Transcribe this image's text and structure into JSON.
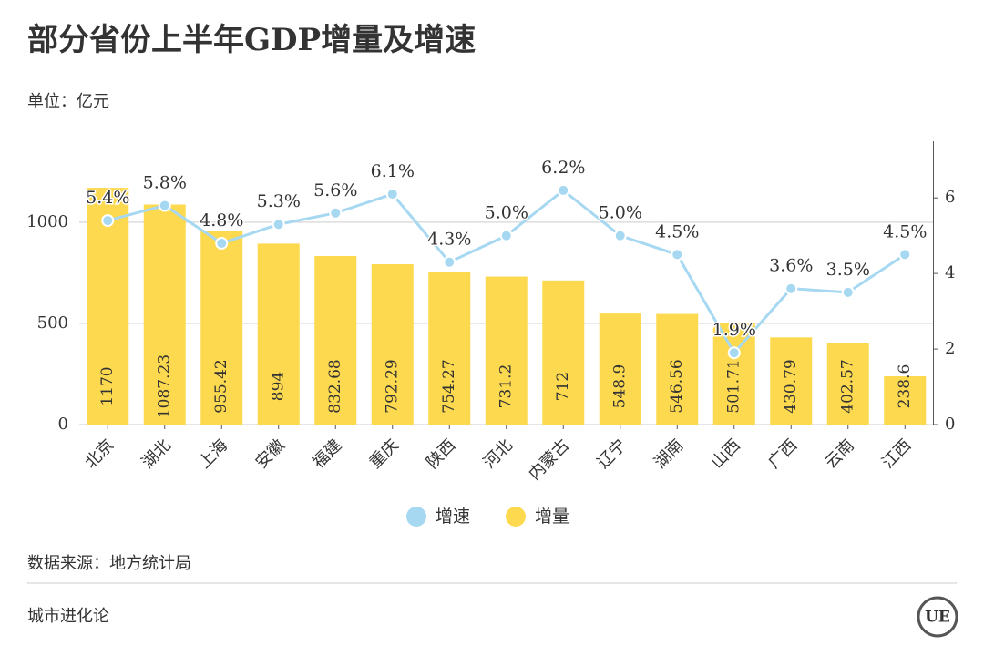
{
  "chart_data": {
    "type": "bar-line",
    "title": "部分省份上半年GDP增量及增速",
    "subtitle": "单位：亿元",
    "source": "数据来源：地方统计局",
    "footer": "城市进化论",
    "logo": "UE",
    "categories": [
      "北京",
      "湖北",
      "上海",
      "安徽",
      "福建",
      "重庆",
      "陕西",
      "河北",
      "内蒙古",
      "辽宁",
      "湖南",
      "山西",
      "广西",
      "云南",
      "江西"
    ],
    "series": [
      {
        "name": "增速",
        "type": "line",
        "axis": "y2",
        "color": "#a6d8f2",
        "values": [
          5.4,
          5.8,
          4.8,
          5.3,
          5.6,
          6.1,
          4.3,
          5.0,
          6.2,
          5.0,
          4.5,
          1.9,
          3.6,
          3.5,
          4.5
        ],
        "value_labels": [
          "5.4%",
          "5.8%",
          "4.8%",
          "5.3%",
          "5.6%",
          "6.1%",
          "4.3%",
          "5.0%",
          "6.2%",
          "5.0%",
          "4.5%",
          "1.9%",
          "3.6%",
          "3.5%",
          "4.5%"
        ]
      },
      {
        "name": "增量",
        "type": "bar",
        "color": "#fdd94f",
        "values": [
          1170,
          1087.23,
          955.42,
          894,
          832.68,
          792.29,
          754.27,
          731.2,
          712,
          548.9,
          546.56,
          501.71,
          430.79,
          402.57,
          238.6
        ]
      }
    ],
    "ylim": [
      0,
      1400
    ],
    "yticks": [
      0,
      500,
      1000
    ],
    "y2lim": [
      0,
      7.5
    ],
    "y2ticks": [
      0,
      2,
      4,
      6
    ],
    "grid": true,
    "legend": "bottom"
  }
}
